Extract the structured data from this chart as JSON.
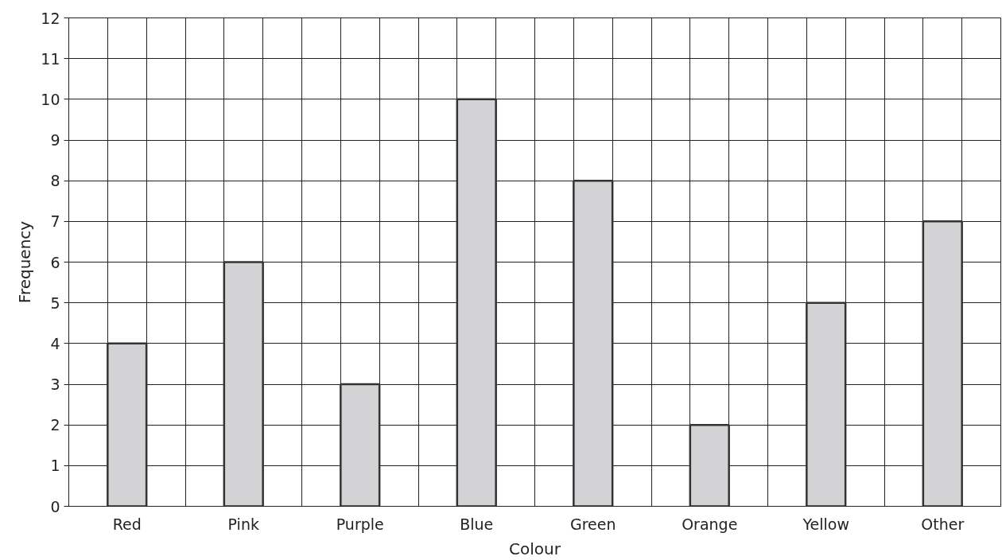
{
  "chart_data": {
    "type": "bar",
    "xlabel": "Colour",
    "ylabel": "Frequency",
    "categories": [
      "Red",
      "Pink",
      "Purple",
      "Blue",
      "Green",
      "Orange",
      "Yellow",
      "Other"
    ],
    "values": [
      4,
      6,
      3,
      10,
      8,
      2,
      5,
      7
    ],
    "color": "#d3d3d5",
    "ylim": [
      0,
      12
    ],
    "yticks": [
      0,
      1,
      2,
      3,
      4,
      5,
      6,
      7,
      8,
      9,
      10,
      11,
      12
    ],
    "grid": true
  }
}
